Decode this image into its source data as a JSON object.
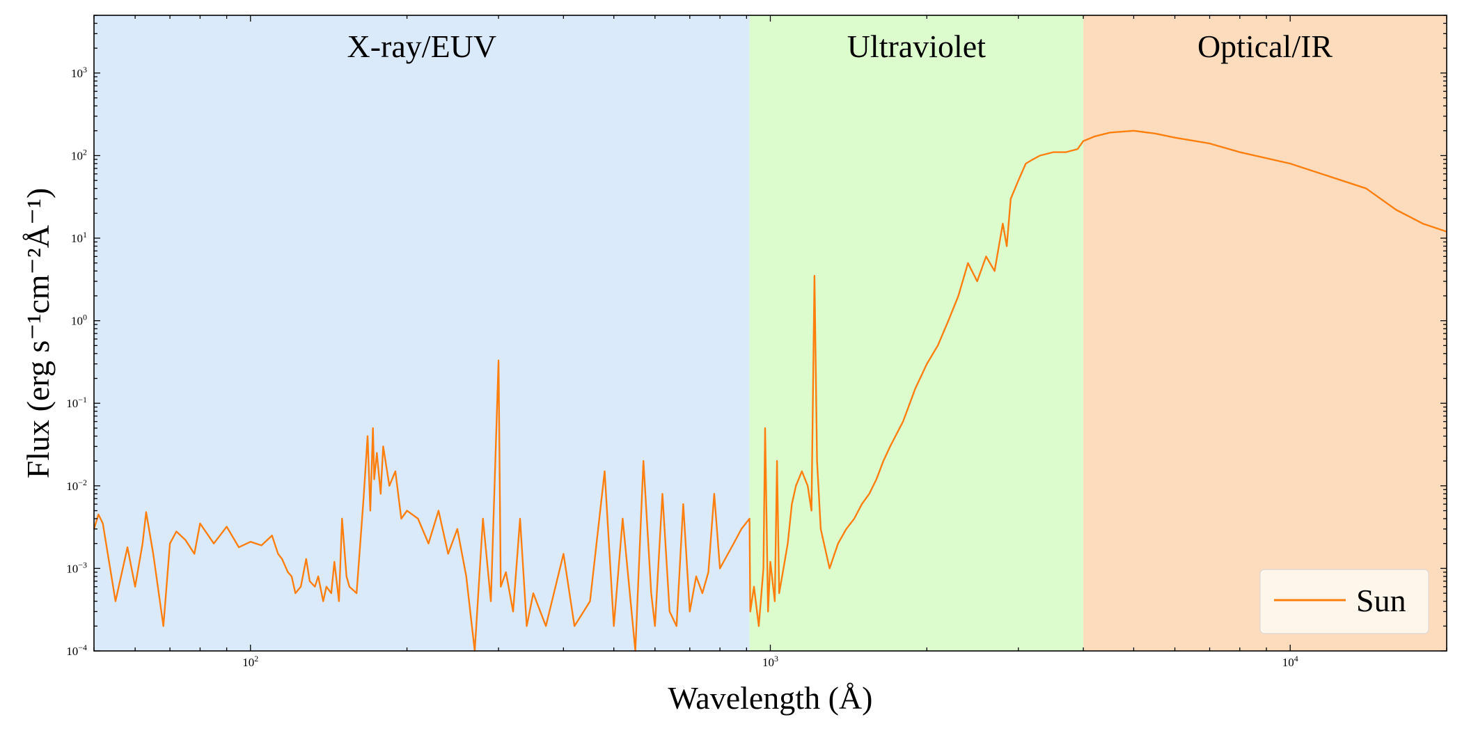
{
  "chart_data": {
    "type": "line",
    "xlabel": "Wavelength (Å)",
    "ylabel": "Flux (erg s⁻¹cm⁻²Å⁻¹)",
    "xscale": "log",
    "yscale": "log",
    "xlim": [
      50,
      20000
    ],
    "ylim": [
      0.0001,
      5000
    ],
    "grid": false,
    "legend_position": "bottom-right",
    "x_ticks": [
      {
        "value": 100,
        "base": "10",
        "exp": "2"
      },
      {
        "value": 1000,
        "base": "10",
        "exp": "3"
      },
      {
        "value": 10000,
        "base": "10",
        "exp": "4"
      }
    ],
    "y_ticks": [
      {
        "value": 0.0001,
        "base": "10",
        "exp": "−4"
      },
      {
        "value": 0.001,
        "base": "10",
        "exp": "−3"
      },
      {
        "value": 0.01,
        "base": "10",
        "exp": "−2"
      },
      {
        "value": 0.1,
        "base": "10",
        "exp": "−1"
      },
      {
        "value": 1,
        "base": "10",
        "exp": "0"
      },
      {
        "value": 10,
        "base": "10",
        "exp": "1"
      },
      {
        "value": 100,
        "base": "10",
        "exp": "2"
      },
      {
        "value": 1000,
        "base": "10",
        "exp": "3"
      }
    ],
    "regions": [
      {
        "label": "X-ray/EUV",
        "x_start": 50,
        "x_end": 912,
        "color": "#dbeafb"
      },
      {
        "label": "Ultraviolet",
        "x_start": 912,
        "x_end": 4000,
        "color": "#dcfcce"
      },
      {
        "label": "Optical/IR",
        "x_start": 4000,
        "x_end": 20000,
        "color": "#fcdcbc"
      }
    ],
    "series": [
      {
        "name": "Sun",
        "color": "#ff7f0e",
        "x": [
          50,
          51,
          52,
          55,
          58,
          60,
          62,
          63,
          65,
          68,
          70,
          72,
          75,
          78,
          80,
          85,
          90,
          95,
          100,
          105,
          110,
          113,
          115,
          118,
          120,
          122,
          125,
          128,
          130,
          133,
          135,
          138,
          140,
          143,
          145,
          148,
          150,
          153,
          155,
          160,
          165,
          168,
          170,
          172,
          173,
          175,
          178,
          180,
          185,
          190,
          195,
          200,
          210,
          220,
          230,
          240,
          250,
          260,
          270,
          280,
          290,
          300,
          303,
          310,
          320,
          330,
          340,
          350,
          370,
          400,
          420,
          450,
          480,
          500,
          520,
          550,
          570,
          590,
          600,
          620,
          640,
          660,
          680,
          700,
          720,
          740,
          760,
          780,
          800,
          850,
          880,
          912,
          915,
          930,
          950,
          970,
          977,
          990,
          1000,
          1020,
          1030,
          1040,
          1060,
          1080,
          1100,
          1120,
          1150,
          1180,
          1200,
          1216,
          1230,
          1250,
          1300,
          1350,
          1400,
          1450,
          1500,
          1550,
          1600,
          1650,
          1700,
          1800,
          1900,
          2000,
          2100,
          2200,
          2300,
          2400,
          2500,
          2600,
          2700,
          2800,
          2850,
          2900,
          3000,
          3100,
          3200,
          3300,
          3500,
          3700,
          3900,
          4000,
          4200,
          4500,
          5000,
          5500,
          6000,
          7000,
          8000,
          10000,
          12000,
          14000,
          16000,
          18000,
          20000
        ],
        "y": [
          0.003,
          0.0045,
          0.0035,
          0.0004,
          0.0018,
          0.0006,
          0.002,
          0.0048,
          0.0015,
          0.0002,
          0.002,
          0.0028,
          0.0022,
          0.0015,
          0.0035,
          0.002,
          0.0032,
          0.0018,
          0.0021,
          0.0019,
          0.0025,
          0.0015,
          0.0013,
          0.0009,
          0.0008,
          0.0005,
          0.0006,
          0.0013,
          0.0007,
          0.0006,
          0.0008,
          0.0004,
          0.0006,
          0.0005,
          0.0012,
          0.0004,
          0.004,
          0.0008,
          0.0006,
          0.0005,
          0.007,
          0.04,
          0.005,
          0.05,
          0.012,
          0.025,
          0.008,
          0.03,
          0.01,
          0.015,
          0.004,
          0.005,
          0.004,
          0.002,
          0.005,
          0.0015,
          0.003,
          0.0008,
          0.0001,
          0.004,
          0.0004,
          0.33,
          0.0006,
          0.0009,
          0.0003,
          0.004,
          0.0002,
          0.0005,
          0.0002,
          0.0015,
          0.0002,
          0.0004,
          0.015,
          0.0002,
          0.004,
          0.0001,
          0.02,
          0.0005,
          0.0002,
          0.008,
          0.0003,
          0.0002,
          0.006,
          0.0003,
          0.0008,
          0.0005,
          0.0009,
          0.008,
          0.001,
          0.002,
          0.003,
          0.004,
          0.0003,
          0.0006,
          0.0002,
          0.001,
          0.05,
          0.0003,
          0.0012,
          0.0004,
          0.02,
          0.0005,
          0.001,
          0.002,
          0.006,
          0.01,
          0.015,
          0.01,
          0.005,
          3.5,
          0.02,
          0.003,
          0.001,
          0.002,
          0.003,
          0.004,
          0.006,
          0.008,
          0.012,
          0.02,
          0.03,
          0.06,
          0.15,
          0.3,
          0.5,
          1.0,
          2.0,
          5.0,
          3.0,
          6.0,
          4.0,
          15.0,
          8.0,
          30.0,
          50.0,
          80.0,
          90.0,
          100.0,
          110.0,
          110.0,
          120.0,
          150.0,
          170.0,
          190.0,
          200.0,
          185.0,
          165.0,
          140.0,
          110.0,
          80.0,
          55.0,
          40.0,
          22.0,
          15.0,
          12.0
        ]
      }
    ]
  }
}
